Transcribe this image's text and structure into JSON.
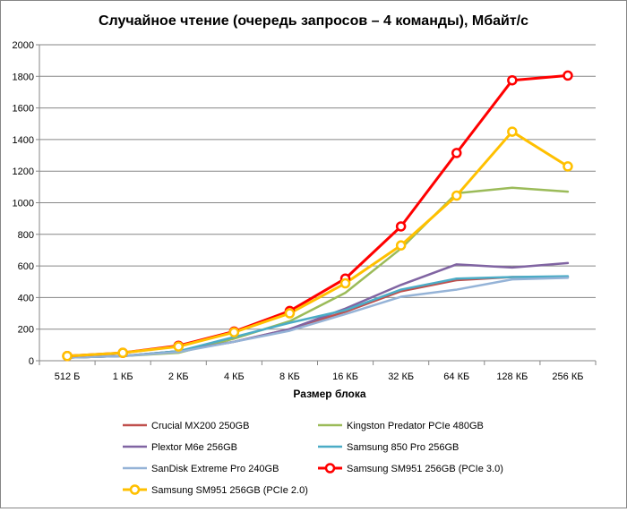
{
  "chart_data": {
    "type": "line",
    "title": "Случайное чтение (очередь запросов – 4 команды), Мбайт/с",
    "xlabel": "Размер блока",
    "ylabel": "",
    "ylim": [
      0,
      2000
    ],
    "yticks": [
      "0",
      "200",
      "400",
      "600",
      "800",
      "1000",
      "1200",
      "1400",
      "1600",
      "1800",
      "2000"
    ],
    "grid": true,
    "legend_position": "bottom",
    "categories": [
      "512 Б",
      "1 КБ",
      "2 КБ",
      "4 КБ",
      "8 КБ",
      "16 КБ",
      "32 КБ",
      "64 КБ",
      "128 КБ",
      "256 КБ"
    ],
    "series": [
      {
        "name": "Crucial MX200 250GB",
        "color": "#C0504D",
        "marker": false,
        "width": 2.5,
        "values": [
          20,
          30,
          60,
          120,
          200,
          310,
          440,
          510,
          530,
          530
        ]
      },
      {
        "name": "Kingston Predator PCIe 480GB",
        "color": "#9BBB59",
        "marker": false,
        "width": 2.5,
        "values": [
          20,
          30,
          50,
          140,
          250,
          430,
          710,
          1060,
          1095,
          1070
        ]
      },
      {
        "name": "Plextor M6e 256GB",
        "color": "#8064A2",
        "marker": false,
        "width": 2.5,
        "values": [
          20,
          30,
          60,
          120,
          200,
          330,
          480,
          610,
          590,
          618
        ]
      },
      {
        "name": "Samsung 850 Pro 256GB",
        "color": "#4BACC6",
        "marker": false,
        "width": 2.5,
        "values": [
          20,
          30,
          60,
          150,
          240,
          320,
          450,
          520,
          530,
          535
        ]
      },
      {
        "name": "SanDisk Extreme Pro 240GB",
        "color": "#95B3D7",
        "marker": false,
        "width": 2.5,
        "values": [
          20,
          30,
          55,
          120,
          190,
          295,
          405,
          450,
          515,
          525
        ]
      },
      {
        "name": "Samsung SM951 256GB (PCIe 3.0)",
        "color": "#FF0000",
        "marker": true,
        "width": 3,
        "values": [
          30,
          50,
          95,
          185,
          315,
          520,
          850,
          1315,
          1775,
          1805
        ]
      },
      {
        "name": "Samsung SM951 256GB (PCIe 2.0)",
        "color": "#FFC000",
        "marker": true,
        "width": 3,
        "values": [
          30,
          50,
          90,
          180,
          300,
          490,
          730,
          1045,
          1450,
          1230
        ]
      }
    ]
  }
}
